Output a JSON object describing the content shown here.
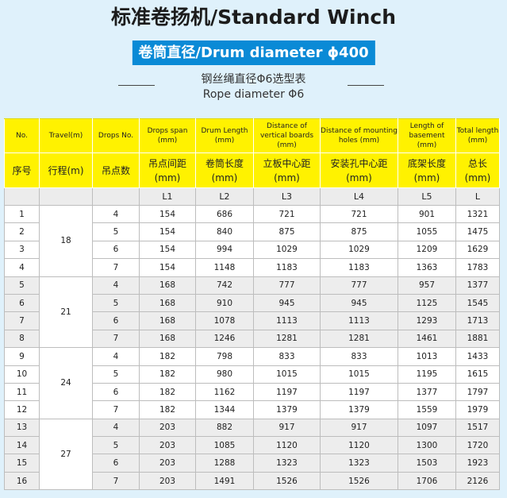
{
  "title": "标准卷扬机/Standard Winch",
  "badge": "卷筒直径/Drum diameter ϕ400",
  "subtitle_cn": "钢丝绳直径Φ6选型表",
  "subtitle_en": "Rope diameter Φ6",
  "colors": {
    "background": "#dff1fb",
    "badge": "#0a8ad6",
    "header": "#fff200"
  },
  "headers_en": [
    "No.",
    "Travel(m)",
    "Drops No.",
    "Drops span (mm)",
    "Drum Length (mm)",
    "Distance of vertical boards (mm)",
    "Distance of mounting holes (mm)",
    "Length of basement (mm)",
    "Total length (mm)"
  ],
  "headers_cn": [
    "序号",
    "行程(m)",
    "吊点数",
    "吊点间距 (mm)",
    "卷筒长度 (mm)",
    "立板中心距 (mm)",
    "安装孔中心距 (mm)",
    "底架长度 (mm)",
    "总长 (mm)"
  ],
  "codes": [
    "",
    "",
    "",
    "L1",
    "L2",
    "L3",
    "L4",
    "L5",
    "L"
  ],
  "groups": [
    {
      "travel": "18",
      "rows": [
        [
          "1",
          "4",
          "154",
          "686",
          "721",
          "721",
          "901",
          "1321"
        ],
        [
          "2",
          "5",
          "154",
          "840",
          "875",
          "875",
          "1055",
          "1475"
        ],
        [
          "3",
          "6",
          "154",
          "994",
          "1029",
          "1029",
          "1209",
          "1629"
        ],
        [
          "4",
          "7",
          "154",
          "1148",
          "1183",
          "1183",
          "1363",
          "1783"
        ]
      ]
    },
    {
      "travel": "21",
      "rows": [
        [
          "5",
          "4",
          "168",
          "742",
          "777",
          "777",
          "957",
          "1377"
        ],
        [
          "6",
          "5",
          "168",
          "910",
          "945",
          "945",
          "1125",
          "1545"
        ],
        [
          "7",
          "6",
          "168",
          "1078",
          "1113",
          "1113",
          "1293",
          "1713"
        ],
        [
          "8",
          "7",
          "168",
          "1246",
          "1281",
          "1281",
          "1461",
          "1881"
        ]
      ]
    },
    {
      "travel": "24",
      "rows": [
        [
          "9",
          "4",
          "182",
          "798",
          "833",
          "833",
          "1013",
          "1433"
        ],
        [
          "10",
          "5",
          "182",
          "980",
          "1015",
          "1015",
          "1195",
          "1615"
        ],
        [
          "11",
          "6",
          "182",
          "1162",
          "1197",
          "1197",
          "1377",
          "1797"
        ],
        [
          "12",
          "7",
          "182",
          "1344",
          "1379",
          "1379",
          "1559",
          "1979"
        ]
      ]
    },
    {
      "travel": "27",
      "rows": [
        [
          "13",
          "4",
          "203",
          "882",
          "917",
          "917",
          "1097",
          "1517"
        ],
        [
          "14",
          "5",
          "203",
          "1085",
          "1120",
          "1120",
          "1300",
          "1720"
        ],
        [
          "15",
          "6",
          "203",
          "1288",
          "1323",
          "1323",
          "1503",
          "1923"
        ],
        [
          "16",
          "7",
          "203",
          "1491",
          "1526",
          "1526",
          "1706",
          "2126"
        ]
      ]
    }
  ]
}
